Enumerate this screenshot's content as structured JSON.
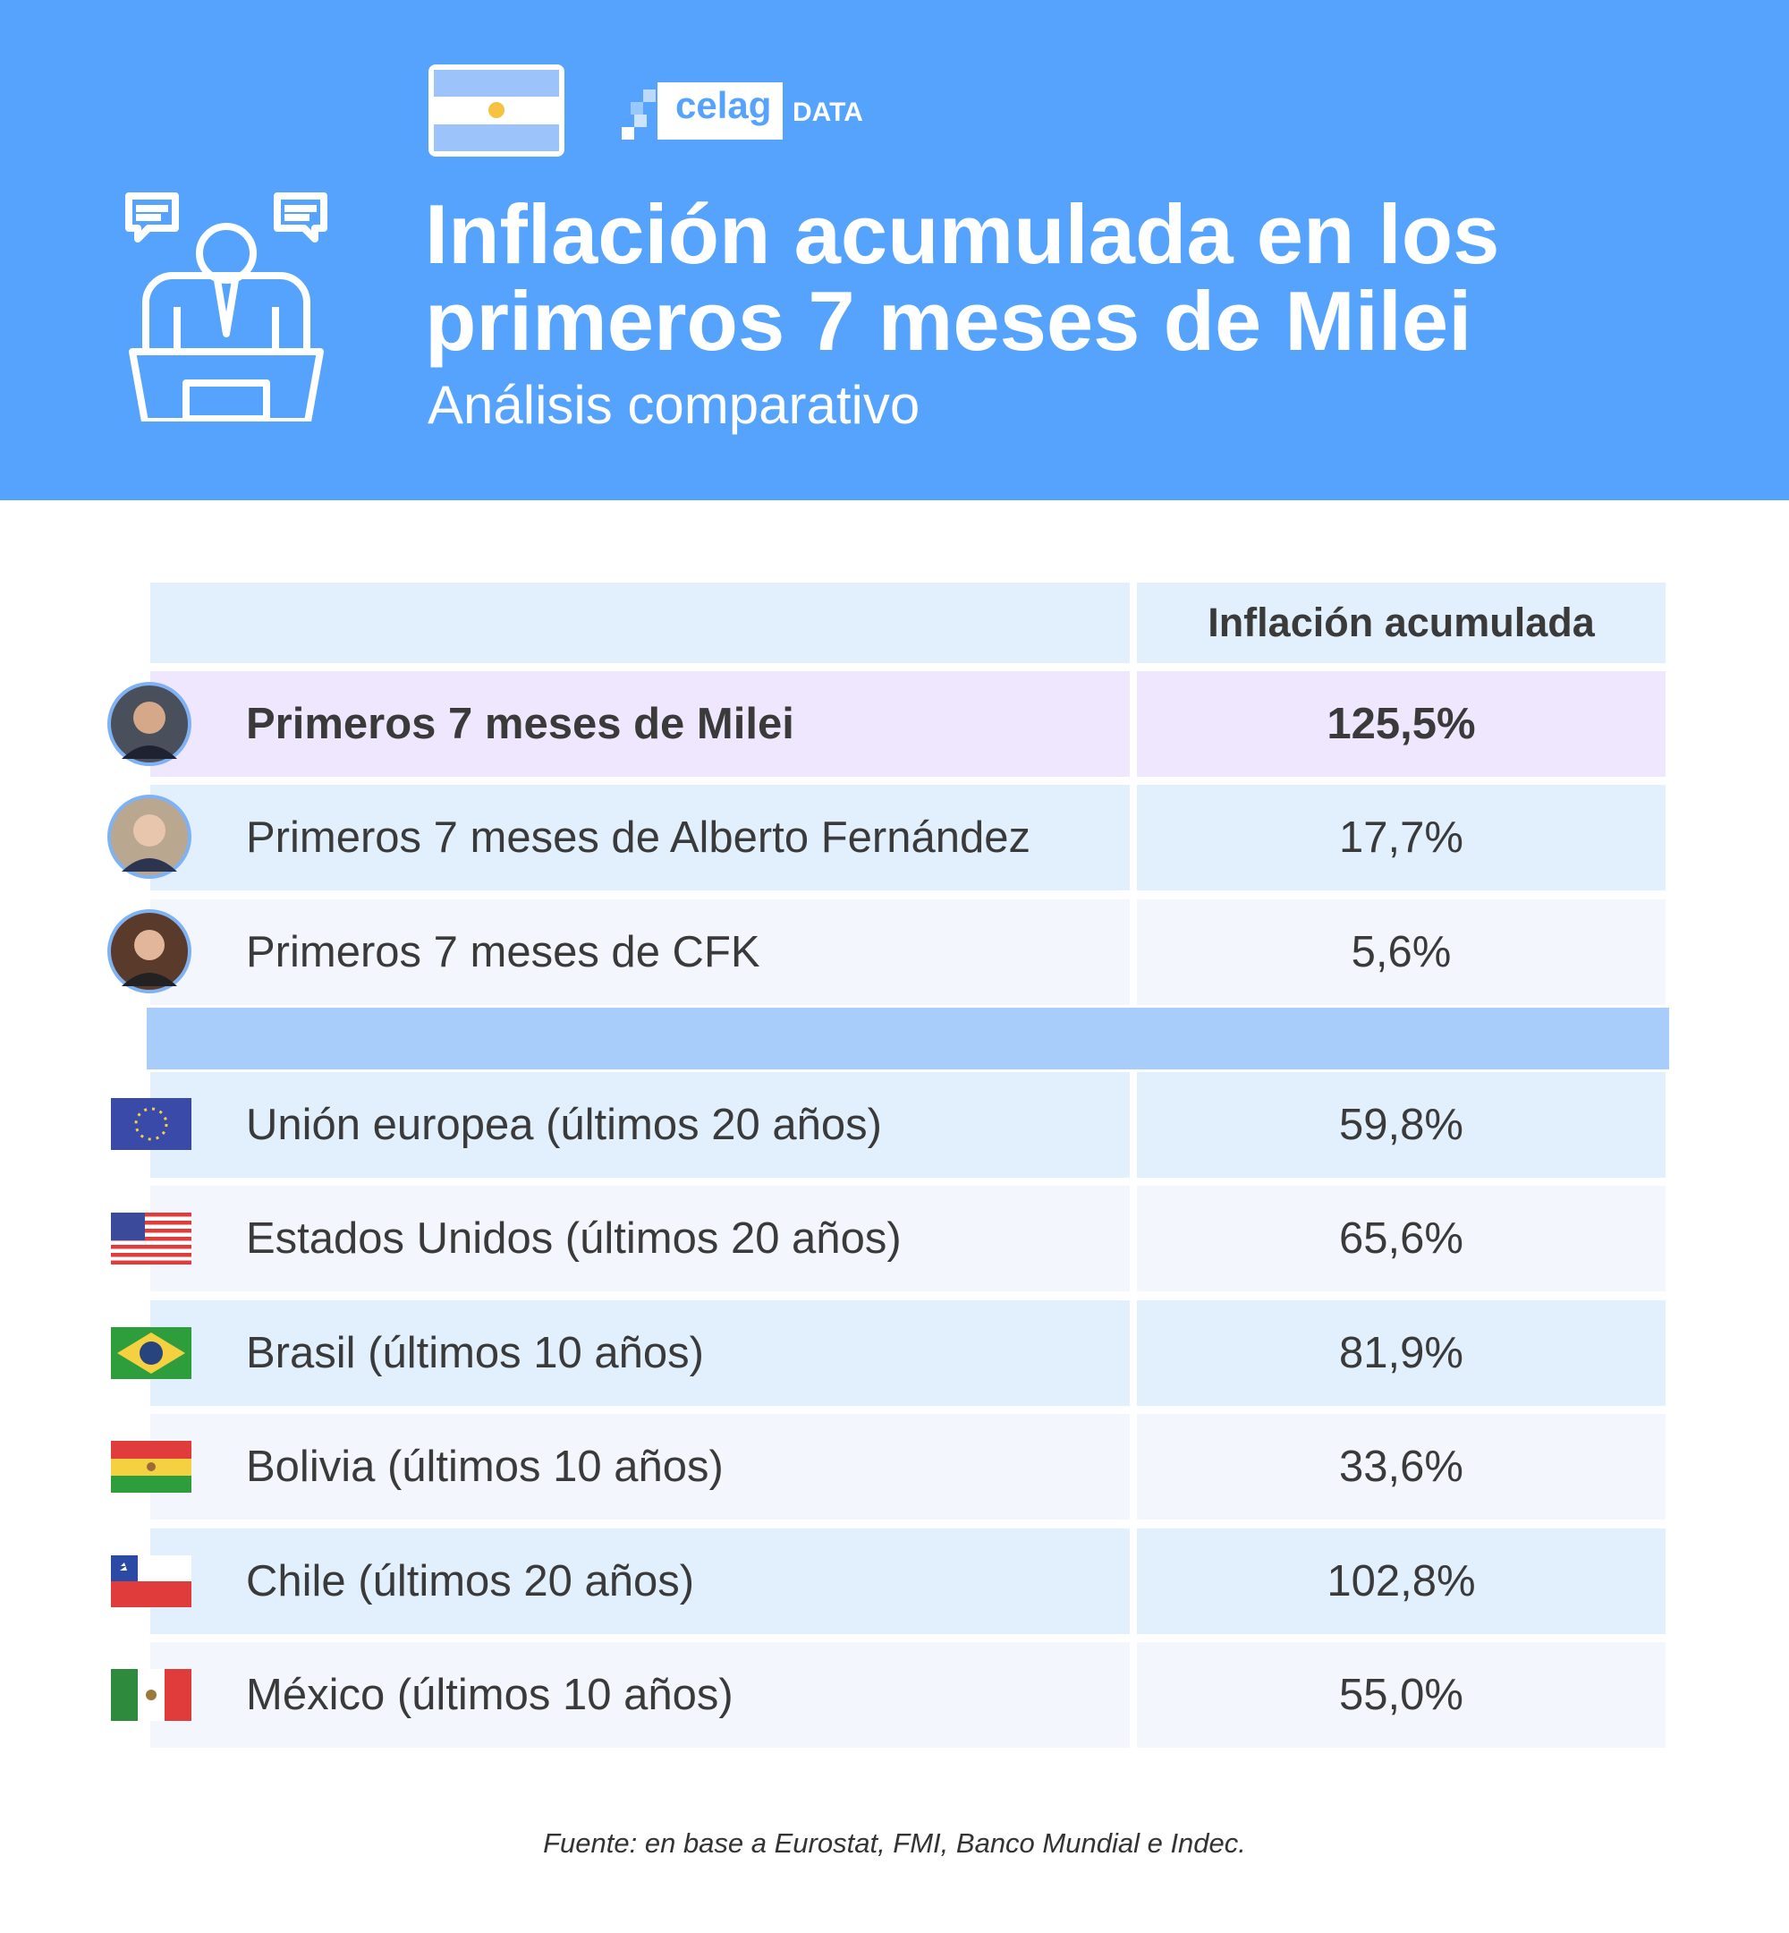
{
  "header": {
    "brand": "celag",
    "brand_suffix": "DATA",
    "title_lines": [
      "Inflación acumulada en los",
      "primeros 7 meses de Milei"
    ],
    "subtitle": "Análisis comparativo"
  },
  "table": {
    "column_header": "Inflación acumulada",
    "presidents": [
      {
        "label": "Primeros 7 meses de Milei",
        "value": "125,5%"
      },
      {
        "label": "Primeros 7 meses de Alberto Fernández",
        "value": "17,7%"
      },
      {
        "label": "Primeros 7 meses de CFK",
        "value": "5,6%"
      }
    ],
    "countries": [
      {
        "label": "Unión europea (últimos 20 años)",
        "value": "59,8%"
      },
      {
        "label": "Estados Unidos (últimos 20 años)",
        "value": "65,6%"
      },
      {
        "label": "Brasil (últimos 10 años)",
        "value": "81,9%"
      },
      {
        "label": "Bolivia (últimos 10 años)",
        "value": "33,6%"
      },
      {
        "label": "Chile (últimos 20 años)",
        "value": "102,8%"
      },
      {
        "label": "México  (últimos 10 años)",
        "value": "55,0%"
      }
    ]
  },
  "footer": {
    "source": "Fuente: en base a Eurostat, FMI, Banco Mundial e Indec."
  }
}
